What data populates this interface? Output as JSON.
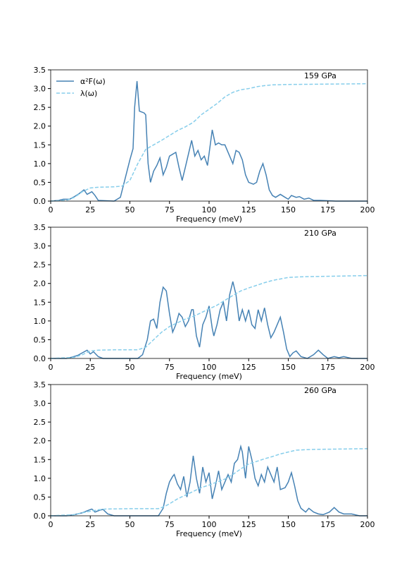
{
  "chart_data": [
    {
      "type": "line",
      "annotation": "159 GPa",
      "xlabel": "Frequency (meV)",
      "legend": "upper left",
      "xlim": [
        0,
        200
      ],
      "xticks": [
        0,
        25,
        50,
        75,
        100,
        125,
        150,
        175,
        200
      ],
      "ylim": [
        0,
        3.5
      ],
      "yticks": [
        {
          "value": 0,
          "label": "0.0"
        },
        {
          "value": 0.5,
          "label": "0.5"
        },
        {
          "value": 1,
          "label": "1.0"
        },
        {
          "value": 1.5,
          "label": "1.5"
        },
        {
          "value": 2,
          "label": "2.0"
        },
        {
          "value": 2.5,
          "label": "2.5"
        },
        {
          "value": 3,
          "label": "3.0"
        },
        {
          "value": 3.5,
          "label": "3.5"
        }
      ],
      "series": [
        {
          "name": "α²F(ω)",
          "color": "#4682b4",
          "linestyle": "solid",
          "x": [
            0,
            5,
            8,
            12,
            15,
            18,
            21,
            23,
            26,
            28,
            30,
            40,
            44,
            47,
            50,
            52,
            53,
            54.5,
            56,
            59,
            60,
            61.5,
            63,
            65,
            67,
            69,
            71,
            73,
            75,
            77,
            79,
            81,
            83,
            85,
            89,
            91,
            93,
            95,
            97,
            99,
            102,
            104,
            106,
            108,
            110,
            112,
            115,
            117,
            119,
            121,
            123,
            125,
            128,
            130,
            132,
            134,
            136,
            138,
            140,
            142,
            145,
            148,
            150,
            152,
            155,
            157,
            160,
            163,
            166,
            170,
            180,
            200
          ],
          "values": [
            0,
            0.02,
            0.05,
            0.05,
            0.12,
            0.2,
            0.3,
            0.18,
            0.25,
            0.15,
            0.02,
            0,
            0.1,
            0.6,
            1.1,
            1.4,
            2.5,
            3.2,
            2.4,
            2.35,
            2.3,
            1.0,
            0.5,
            0.8,
            0.95,
            1.15,
            0.7,
            0.9,
            1.2,
            1.25,
            1.3,
            0.9,
            0.55,
            0.9,
            1.62,
            1.2,
            1.35,
            1.1,
            1.2,
            0.95,
            1.9,
            1.5,
            1.55,
            1.5,
            1.5,
            1.3,
            1.0,
            1.35,
            1.3,
            1.1,
            0.7,
            0.5,
            0.45,
            0.5,
            0.8,
            1.0,
            0.7,
            0.3,
            0.15,
            0.1,
            0.18,
            0.1,
            0.05,
            0.15,
            0.1,
            0.12,
            0.05,
            0.08,
            0.02,
            0.02,
            0,
            0
          ]
        },
        {
          "name": "λ(ω)",
          "color": "#87ceeb",
          "linestyle": "dashed",
          "x": [
            0,
            10,
            15,
            20,
            25,
            30,
            40,
            45,
            50,
            55,
            60,
            65,
            70,
            75,
            80,
            85,
            90,
            95,
            100,
            105,
            110,
            115,
            120,
            125,
            130,
            135,
            140,
            150,
            200
          ],
          "values": [
            0,
            0.02,
            0.1,
            0.25,
            0.35,
            0.37,
            0.38,
            0.4,
            0.55,
            1.0,
            1.38,
            1.5,
            1.62,
            1.75,
            1.88,
            1.98,
            2.1,
            2.3,
            2.45,
            2.6,
            2.78,
            2.9,
            2.97,
            3.0,
            3.05,
            3.08,
            3.1,
            3.11,
            3.13
          ]
        }
      ]
    },
    {
      "type": "line",
      "annotation": "210 GPa",
      "xlabel": "Frequency (meV)",
      "xlim": [
        0,
        200
      ],
      "xticks": [
        0,
        25,
        50,
        75,
        100,
        125,
        150,
        175,
        200
      ],
      "ylim": [
        0,
        3.5
      ],
      "yticks": [
        {
          "value": 0,
          "label": "0.0"
        },
        {
          "value": 0.5,
          "label": "0.5"
        },
        {
          "value": 1,
          "label": "1.0"
        },
        {
          "value": 1.5,
          "label": "1.5"
        },
        {
          "value": 2,
          "label": "2.0"
        },
        {
          "value": 2.5,
          "label": "2.5"
        },
        {
          "value": 3,
          "label": "3.0"
        },
        {
          "value": 3.5,
          "label": "3.5"
        }
      ],
      "series": [
        {
          "color": "#4682b4",
          "linestyle": "solid",
          "x": [
            0,
            10,
            13,
            17,
            20,
            23,
            25,
            27,
            30,
            33,
            55,
            58,
            61,
            63,
            65,
            67,
            69,
            71,
            73,
            75,
            77,
            79,
            81,
            83,
            85,
            87,
            89,
            90,
            92,
            94,
            96,
            98,
            100,
            102,
            103,
            105,
            107,
            109,
            111,
            113,
            115,
            117,
            119,
            121,
            123,
            125,
            127,
            129,
            131,
            133,
            135,
            137,
            139,
            141,
            143,
            145,
            147,
            149,
            151,
            153,
            155,
            158,
            162,
            166,
            169,
            172,
            175,
            179,
            182,
            185,
            190,
            200
          ],
          "values": [
            0,
            0,
            0.03,
            0.08,
            0.15,
            0.22,
            0.12,
            0.18,
            0.05,
            0,
            0,
            0.1,
            0.5,
            1.0,
            1.05,
            0.8,
            1.5,
            1.9,
            1.8,
            1.2,
            0.7,
            0.9,
            1.2,
            1.1,
            0.85,
            1.0,
            1.3,
            1.3,
            0.6,
            0.3,
            0.9,
            1.1,
            1.4,
            0.8,
            0.6,
            0.9,
            1.3,
            1.5,
            1.0,
            1.7,
            2.05,
            1.7,
            1.0,
            1.3,
            1.0,
            1.3,
            0.9,
            0.8,
            1.3,
            1.0,
            1.35,
            0.9,
            0.55,
            0.7,
            0.9,
            1.1,
            0.7,
            0.25,
            0.05,
            0.15,
            0.2,
            0.05,
            0,
            0.1,
            0.22,
            0.1,
            0,
            0.05,
            0.02,
            0.05,
            0,
            0
          ]
        },
        {
          "color": "#87ceeb",
          "linestyle": "dashed",
          "x": [
            0,
            15,
            20,
            25,
            30,
            40,
            55,
            60,
            65,
            70,
            75,
            80,
            85,
            90,
            95,
            100,
            105,
            110,
            115,
            120,
            125,
            130,
            135,
            140,
            145,
            150,
            160,
            200
          ],
          "values": [
            0,
            0.03,
            0.1,
            0.2,
            0.22,
            0.23,
            0.23,
            0.3,
            0.5,
            0.7,
            0.85,
            0.95,
            1.05,
            1.12,
            1.22,
            1.32,
            1.42,
            1.55,
            1.68,
            1.8,
            1.88,
            1.95,
            2.02,
            2.08,
            2.12,
            2.16,
            2.18,
            2.21
          ]
        }
      ]
    },
    {
      "type": "line",
      "annotation": "260 GPa",
      "xlabel": "Frequency (meV)",
      "xlim": [
        0,
        200
      ],
      "xticks": [
        0,
        25,
        50,
        75,
        100,
        125,
        150,
        175,
        200
      ],
      "ylim": [
        0,
        3.5
      ],
      "yticks": [
        {
          "value": 0,
          "label": "0.0"
        },
        {
          "value": 0.5,
          "label": "0.5"
        },
        {
          "value": 1,
          "label": "1.0"
        },
        {
          "value": 1.5,
          "label": "1.5"
        },
        {
          "value": 2,
          "label": "2.0"
        },
        {
          "value": 2.5,
          "label": "2.5"
        },
        {
          "value": 3,
          "label": "3.0"
        },
        {
          "value": 3.5,
          "label": "3.5"
        }
      ],
      "series": [
        {
          "color": "#4682b4",
          "linestyle": "solid",
          "x": [
            0,
            10,
            15,
            20,
            24,
            26,
            28,
            31,
            33,
            36,
            40,
            68,
            71,
            73,
            75,
            77,
            78,
            80,
            82,
            84,
            86,
            88,
            90,
            92,
            94,
            96,
            98,
            100,
            102,
            104,
            106,
            108,
            110,
            112,
            114,
            116,
            118,
            120,
            121,
            123,
            125,
            127,
            129,
            131,
            133,
            135,
            137,
            139,
            141,
            143,
            145,
            148,
            150,
            152,
            154,
            156,
            158,
            161,
            163,
            166,
            169,
            172,
            176,
            179,
            182,
            185,
            190,
            195,
            200
          ],
          "values": [
            0,
            0,
            0.03,
            0.08,
            0.15,
            0.18,
            0.1,
            0.15,
            0.17,
            0.05,
            0,
            0,
            0.2,
            0.6,
            0.9,
            1.05,
            1.1,
            0.85,
            0.7,
            1.05,
            0.5,
            0.9,
            1.6,
            1.0,
            0.6,
            1.3,
            0.9,
            1.15,
            0.45,
            0.8,
            1.2,
            0.7,
            0.9,
            1.1,
            0.9,
            1.4,
            1.5,
            1.85,
            1.7,
            1.0,
            1.85,
            1.5,
            1.0,
            0.8,
            1.1,
            0.9,
            1.3,
            1.1,
            0.9,
            1.3,
            0.7,
            0.75,
            0.9,
            1.15,
            0.8,
            0.4,
            0.2,
            0.1,
            0.2,
            0.1,
            0.05,
            0.03,
            0.1,
            0.22,
            0.1,
            0.05,
            0.05,
            0,
            0
          ]
        },
        {
          "color": "#87ceeb",
          "linestyle": "dashed",
          "x": [
            0,
            15,
            20,
            25,
            30,
            35,
            50,
            68,
            72,
            75,
            80,
            85,
            90,
            95,
            100,
            105,
            110,
            115,
            120,
            125,
            130,
            135,
            140,
            145,
            150,
            155,
            165,
            200
          ],
          "values": [
            0,
            0.03,
            0.08,
            0.12,
            0.16,
            0.18,
            0.19,
            0.19,
            0.25,
            0.32,
            0.45,
            0.55,
            0.65,
            0.75,
            0.82,
            0.9,
            0.98,
            1.1,
            1.25,
            1.38,
            1.45,
            1.52,
            1.58,
            1.65,
            1.7,
            1.75,
            1.77,
            1.79
          ]
        }
      ]
    }
  ]
}
